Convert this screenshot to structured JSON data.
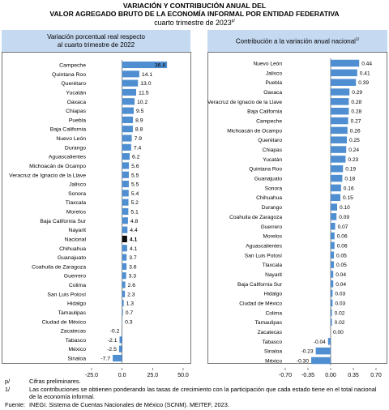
{
  "header": {
    "title_line1": "VARIACIÓN Y CONTRIBUCIÓN ANUAL DEL",
    "title_line2": "VALOR AGREGADO BRUTO DE LA ECONOMÍA INFORMAL POR ENTIDAD FEDERATIVA",
    "subtitle": "cuarto trimestre de 2023",
    "subtitle_mark": "p/"
  },
  "colors": {
    "bar": "#4f8fd1",
    "highlight": "#0d0d0d",
    "header_bg": "#c5d9f1"
  },
  "chart_data": [
    {
      "type": "bar",
      "orientation": "horizontal",
      "title_line1": "Variación porcentual real respecto",
      "title_line2": "al cuarto trimestre de 2022",
      "categories": [
        "Campeche",
        "Quintana Roo",
        "Querétaro",
        "Yucatán",
        "Oaxaca",
        "Chiapas",
        "Puebla",
        "Baja California",
        "Nuevo León",
        "Durango",
        "Aguascalientes",
        "Michoacán de Ocampo",
        "Veracruz de Ignacio de la Llave",
        "Jalisco",
        "Sonora",
        "Tlaxcala",
        "Morelos",
        "Baja California Sur",
        "Nayarit",
        "Nacional",
        "Chihuahua",
        "Guanajuato",
        "Coahuila de Zaragoza",
        "Guerrero",
        "Colima",
        "San Luis Potosí",
        "Hidalgo",
        "Tamaulipas",
        "Ciudad de México",
        "Zacatecas",
        "Tabasco",
        "México",
        "Sinaloa"
      ],
      "values": [
        36.8,
        14.1,
        13.0,
        11.5,
        10.2,
        9.5,
        8.9,
        8.8,
        7.9,
        7.4,
        6.2,
        5.6,
        5.5,
        5.5,
        5.4,
        5.2,
        5.1,
        4.8,
        4.4,
        4.1,
        4.1,
        3.7,
        3.6,
        3.3,
        2.6,
        2.3,
        1.3,
        0.7,
        0.3,
        -0.2,
        -2.1,
        -2.5,
        -7.7
      ],
      "labels": [
        "36.8",
        "14.1",
        "13.0",
        "11.5",
        "10.2",
        "9.5",
        "8.9",
        "8.8",
        "7.9",
        "7.4",
        "6.2",
        "5.6",
        "5.5",
        "5.5",
        "5.4",
        "5.2",
        "5.1",
        "4.8",
        "4.4",
        "4.1",
        "4.1",
        "3.7",
        "3.6",
        "3.3",
        "2.6",
        "2.3",
        "1.3",
        "0.7",
        "0.3",
        "-0.2",
        "-2.1",
        "-2.5",
        "-7.7"
      ],
      "highlight_category": "Nacional",
      "xlim": [
        -25.0,
        50.0
      ],
      "xticks": [
        -25.0,
        0.0,
        25.0,
        50.0
      ],
      "xtick_labels": [
        "-25.0",
        "0.0",
        "25.0",
        "50.0"
      ],
      "grid": false
    },
    {
      "type": "bar",
      "orientation": "horizontal",
      "title": "Contribución a la variación anual nacional",
      "title_mark": "1/",
      "categories": [
        "Nuevo León",
        "Jalisco",
        "Puebla",
        "Oaxaca",
        "Veracruz de Ignacio de la Llave",
        "Baja California",
        "Campeche",
        "Michoacán de Ocampo",
        "Querétaro",
        "Chiapas",
        "Yucatán",
        "Quintana Roo",
        "Guanajuato",
        "Sonora",
        "Chihuahua",
        "Durango",
        "Coahuila de Zaragoza",
        "Guerrero",
        "Morelos",
        "Aguascalientes",
        "San Luis Potosí",
        "Tlaxcala",
        "Nayarit",
        "Baja California Sur",
        "Hidalgo",
        "Ciudad de México",
        "Colima",
        "Tamaulipas",
        "Zacatecas",
        "Tabasco",
        "Sinaloa",
        "México"
      ],
      "values": [
        0.44,
        0.41,
        0.39,
        0.29,
        0.28,
        0.28,
        0.27,
        0.26,
        0.25,
        0.24,
        0.23,
        0.19,
        0.18,
        0.16,
        0.15,
        0.1,
        0.09,
        0.07,
        0.06,
        0.06,
        0.05,
        0.05,
        0.04,
        0.04,
        0.03,
        0.03,
        0.02,
        0.02,
        0.0,
        -0.04,
        -0.23,
        -0.3
      ],
      "labels": [
        "0.44",
        "0.41",
        "0.39",
        "0.29",
        "0.28",
        "0.28",
        "0.27",
        "0.26",
        "0.25",
        "0.24",
        "0.23",
        "0.19",
        "0.18",
        "0.16",
        "0.15",
        "0.10",
        "0.09",
        "0.07",
        "0.06",
        "0.06",
        "0.05",
        "0.05",
        "0.04",
        "0.04",
        "0.03",
        "0.03",
        "0.02",
        "0.02",
        "0.00",
        "-0.04",
        "-0.23",
        "-0.30"
      ],
      "xlim": [
        -0.7,
        0.7
      ],
      "xticks": [
        -0.7,
        -0.35,
        0.0,
        0.35,
        0.7
      ],
      "xtick_labels": [
        "-0.70",
        "-0.35",
        "0.00",
        "0.35",
        "0.70"
      ],
      "grid": false
    }
  ],
  "footnotes": {
    "note1_mark": "p/",
    "note1_text": "Cifras preliminares.",
    "note2_mark": "1/",
    "note2_text_line1": "Las contribuciones se obtienen ponderando las tasas de crecimiento con la participación que cada estado tiene en el total nacional",
    "note2_text_line2": "de la economía informal.",
    "source_label": "Fuente:",
    "source_text": "INEGI. Sistema de Cuentas Nacionales de México (SCNM). MEITEF, 2023."
  }
}
